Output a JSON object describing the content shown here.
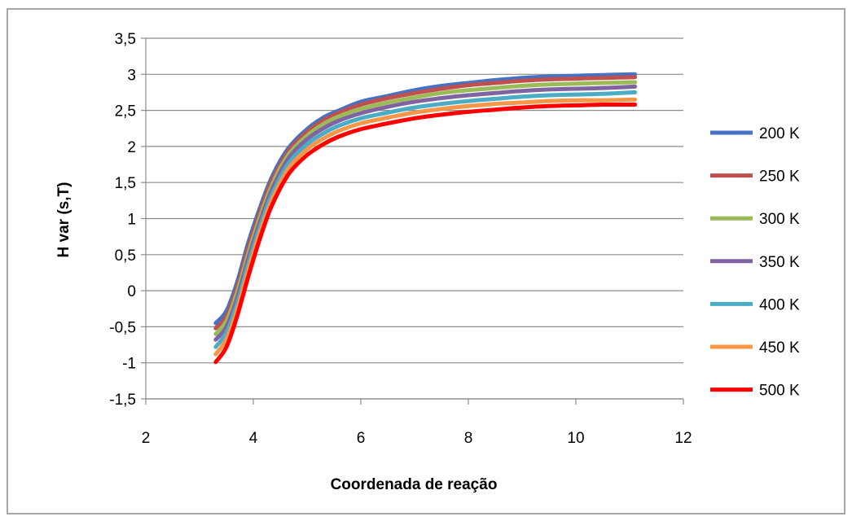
{
  "chart_data": {
    "type": "line",
    "title": "",
    "xlabel": "Coordenada de reação",
    "ylabel": "H var (s,T)",
    "xlim": [
      2,
      12
    ],
    "ylim": [
      -1.5,
      3.5
    ],
    "x_ticks": [
      "2",
      "4",
      "6",
      "8",
      "10",
      "12"
    ],
    "y_ticks": [
      "3,5",
      "3",
      "2,5",
      "2",
      "1,5",
      "1",
      "0,5",
      "0",
      "-0,5",
      "-1",
      "-1,5"
    ],
    "grid": "horizontal",
    "legend_position": "right",
    "x": [
      3.3,
      3.5,
      3.7,
      3.9,
      4.1,
      4.3,
      4.5,
      4.7,
      5.0,
      5.3,
      5.6,
      6.0,
      6.5,
      7.0,
      7.5,
      8.0,
      8.5,
      9.0,
      9.5,
      10.0,
      10.5,
      11.1
    ],
    "series": [
      {
        "name": "200 K",
        "color": "#4472C4",
        "values": [
          -0.45,
          -0.28,
          0.12,
          0.65,
          1.1,
          1.5,
          1.8,
          2.02,
          2.24,
          2.4,
          2.5,
          2.62,
          2.7,
          2.78,
          2.84,
          2.88,
          2.92,
          2.95,
          2.97,
          2.98,
          2.99,
          3.0
        ]
      },
      {
        "name": "250 K",
        "color": "#C0504D",
        "values": [
          -0.52,
          -0.35,
          0.05,
          0.58,
          1.04,
          1.45,
          1.75,
          1.98,
          2.2,
          2.36,
          2.47,
          2.58,
          2.67,
          2.74,
          2.8,
          2.85,
          2.88,
          2.91,
          2.93,
          2.94,
          2.95,
          2.96
        ]
      },
      {
        "name": "300 K",
        "color": "#9BBB59",
        "values": [
          -0.6,
          -0.42,
          -0.02,
          0.5,
          0.97,
          1.38,
          1.7,
          1.93,
          2.15,
          2.31,
          2.42,
          2.52,
          2.61,
          2.68,
          2.74,
          2.78,
          2.81,
          2.84,
          2.86,
          2.87,
          2.88,
          2.89
        ]
      },
      {
        "name": "350 K",
        "color": "#8064A2",
        "values": [
          -0.68,
          -0.5,
          -0.1,
          0.43,
          0.9,
          1.32,
          1.64,
          1.88,
          2.1,
          2.25,
          2.36,
          2.46,
          2.55,
          2.62,
          2.67,
          2.71,
          2.74,
          2.77,
          2.79,
          2.8,
          2.81,
          2.83
        ]
      },
      {
        "name": "400 K",
        "color": "#4BACC6",
        "values": [
          -0.78,
          -0.58,
          -0.18,
          0.35,
          0.83,
          1.25,
          1.57,
          1.81,
          2.03,
          2.18,
          2.29,
          2.39,
          2.47,
          2.54,
          2.59,
          2.63,
          2.66,
          2.69,
          2.71,
          2.72,
          2.73,
          2.75
        ]
      },
      {
        "name": "450 K",
        "color": "#F79646",
        "values": [
          -0.88,
          -0.67,
          -0.26,
          0.27,
          0.76,
          1.18,
          1.5,
          1.74,
          1.96,
          2.11,
          2.22,
          2.32,
          2.4,
          2.47,
          2.52,
          2.56,
          2.59,
          2.61,
          2.63,
          2.64,
          2.64,
          2.65
        ]
      },
      {
        "name": "500 K",
        "color": "#FF0000",
        "values": [
          -0.99,
          -0.78,
          -0.35,
          0.18,
          0.67,
          1.1,
          1.42,
          1.66,
          1.88,
          2.03,
          2.14,
          2.24,
          2.32,
          2.39,
          2.44,
          2.48,
          2.51,
          2.54,
          2.56,
          2.57,
          2.58,
          2.58
        ]
      }
    ]
  }
}
